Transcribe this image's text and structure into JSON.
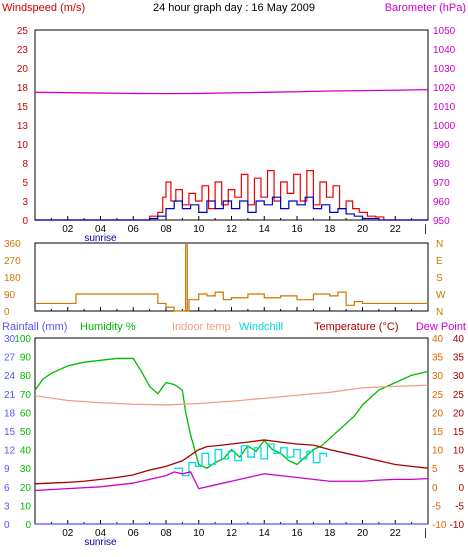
{
  "chart_data": [
    {
      "type": "line",
      "title": "24 hour graph day : 16 May 2009",
      "left_axis_label": "Windspeed (m/s)",
      "right_axis_label": "Barometer (hPa)",
      "left_ylim": [
        0,
        25
      ],
      "left_ticks": [
        "0",
        "3",
        "5",
        "8",
        "10",
        "13",
        "15",
        "18",
        "20",
        "23",
        "25"
      ],
      "right_ylim": [
        950,
        1050
      ],
      "right_ticks": [
        "950",
        "960",
        "970",
        "980",
        "990",
        "1000",
        "1010",
        "1020",
        "1030",
        "1040",
        "1050"
      ],
      "x_ticks": [
        "02",
        "04",
        "06",
        "08",
        "10",
        "12",
        "14",
        "16",
        "18",
        "20",
        "22"
      ],
      "x_annotation": "sunrise",
      "colors": {
        "gust": "#ee0000",
        "wind": "#0000bb",
        "barometer": "#cc00cc",
        "axis_left": "#cc0000",
        "axis_right": "#cc00cc"
      },
      "series": [
        {
          "key": "barometer",
          "axis": "right",
          "x": [
            0,
            2,
            4,
            6,
            8,
            10,
            12,
            14,
            16,
            18,
            20,
            22,
            24
          ],
          "values": [
            1017.2,
            1017.0,
            1016.8,
            1016.6,
            1016.5,
            1016.6,
            1016.9,
            1017.2,
            1017.5,
            1017.9,
            1018.1,
            1018.3,
            1018.6
          ]
        },
        {
          "key": "gust",
          "axis": "left",
          "x": [
            0,
            6.5,
            7,
            7.5,
            7.8,
            8,
            8.3,
            8.6,
            9,
            9.4,
            9.8,
            10.2,
            10.6,
            11,
            11.4,
            11.8,
            12.2,
            12.6,
            13,
            13.4,
            13.8,
            14.2,
            14.6,
            15,
            15.4,
            15.8,
            16.2,
            16.6,
            17,
            17.4,
            17.8,
            18.2,
            18.6,
            19,
            19.4,
            19.8,
            20.3,
            20.8,
            21.3,
            24
          ],
          "values": [
            0,
            0,
            0.5,
            1.0,
            3.0,
            5.0,
            2.5,
            4.0,
            2.0,
            3.5,
            2.5,
            4.5,
            1.5,
            5.0,
            2.0,
            4.0,
            3.0,
            6.0,
            2.0,
            5.5,
            3.0,
            6.5,
            2.5,
            5.0,
            3.5,
            6.0,
            2.5,
            6.5,
            2.0,
            5.0,
            3.0,
            4.5,
            1.5,
            2.5,
            1.5,
            1.0,
            0.5,
            0.4,
            0.0,
            0.0
          ]
        },
        {
          "key": "wind",
          "axis": "left",
          "x": [
            0,
            6.5,
            7,
            7.5,
            8,
            8.5,
            9,
            9.5,
            10,
            10.5,
            11,
            11.5,
            12,
            12.5,
            13,
            13.5,
            14,
            14.5,
            15,
            15.5,
            16,
            16.5,
            17,
            17.5,
            18,
            18.5,
            19,
            19.5,
            20,
            21,
            24
          ],
          "values": [
            0,
            0,
            0.2,
            0.5,
            1.5,
            2.5,
            1.5,
            2.0,
            1.0,
            2.5,
            1.5,
            2.5,
            1.5,
            2.5,
            1.0,
            2.5,
            2.0,
            3.0,
            1.5,
            2.5,
            2.0,
            3.0,
            1.5,
            2.0,
            1.0,
            1.5,
            0.8,
            0.5,
            0.2,
            0.0,
            0.0
          ]
        }
      ]
    },
    {
      "type": "line",
      "axis_label_right": [
        "N",
        "W",
        "S",
        "E",
        "N"
      ],
      "ylim": [
        0,
        360
      ],
      "left_ticks": [
        "0",
        "90",
        "180",
        "270",
        "360"
      ],
      "x_ticks": [
        "02",
        "04",
        "06",
        "08",
        "10",
        "12",
        "14",
        "16",
        "18",
        "20",
        "22"
      ],
      "colors": {
        "direction": "#cc7700",
        "axis": "#cc7700"
      },
      "series": [
        {
          "key": "direction",
          "x": [
            0,
            2,
            2.5,
            4,
            6,
            7,
            7.5,
            8,
            8.5,
            8.8,
            9.2,
            9.3,
            9.4,
            9.5,
            10,
            10.5,
            11,
            11.5,
            12,
            13,
            14,
            15,
            16,
            17,
            18,
            18.5,
            19,
            19.5,
            20,
            22,
            24
          ],
          "values": [
            40,
            40,
            90,
            90,
            90,
            90,
            40,
            20,
            0,
            0,
            350,
            0,
            60,
            60,
            90,
            80,
            100,
            60,
            70,
            90,
            70,
            80,
            60,
            90,
            80,
            100,
            30,
            50,
            40,
            40,
            40
          ]
        }
      ]
    },
    {
      "type": "line",
      "labels": {
        "rainfall": "Rainfall (mm)",
        "humidity": "Humidity %",
        "indoor": "Indoor temp",
        "windchill": "Windchill",
        "temperature": "Temperature (°C)",
        "dewpoint": "Dew Point"
      },
      "x_ticks": [
        "02",
        "04",
        "06",
        "08",
        "10",
        "12",
        "14",
        "16",
        "18",
        "20",
        "22"
      ],
      "x_annotation": "sunrise",
      "rainfall_ticks": [
        "0",
        "3",
        "6",
        "9",
        "12",
        "15",
        "18",
        "21",
        "24",
        "27",
        "30"
      ],
      "humidity_ticks": [
        "0",
        "10",
        "20",
        "30",
        "40",
        "50",
        "60",
        "70",
        "80",
        "90",
        "100"
      ],
      "temp_ticks": [
        "-10",
        "-5",
        "0",
        "5",
        "10",
        "15",
        "20",
        "25",
        "30",
        "35",
        "40"
      ],
      "humidity_ylim": [
        0,
        100
      ],
      "temp_ylim": [
        -10,
        40
      ],
      "colors": {
        "rainfall": "#5555ff",
        "humidity": "#00bb00",
        "indoor": "#f0a080",
        "windchill": "#00dddd",
        "temperature": "#aa0000",
        "dewpoint": "#cc00cc",
        "axis_temp": "#dd6600"
      },
      "series": [
        {
          "key": "humidity",
          "axis": "humidity",
          "x": [
            0,
            0.5,
            1,
            2,
            3,
            4,
            5,
            6,
            6.5,
            7,
            7.5,
            8,
            8.5,
            9,
            9.2,
            9.5,
            10,
            10.5,
            11,
            11.5,
            12,
            12.5,
            13,
            13.5,
            14,
            14.5,
            15,
            15.5,
            16,
            16.5,
            17,
            17.5,
            18,
            18.5,
            19,
            19.5,
            20,
            20.5,
            21,
            22,
            23,
            24
          ],
          "values": [
            72,
            78,
            81,
            85,
            87,
            88,
            89,
            89,
            82,
            74,
            70,
            76,
            75,
            72,
            60,
            48,
            32,
            30,
            33,
            35,
            40,
            36,
            42,
            39,
            45,
            40,
            38,
            34,
            32,
            36,
            40,
            42,
            46,
            50,
            54,
            58,
            64,
            68,
            72,
            76,
            80,
            82
          ]
        },
        {
          "key": "indoor",
          "axis": "temp",
          "x": [
            0,
            2,
            4,
            6,
            8,
            10,
            12,
            14,
            16,
            18,
            20,
            22,
            24
          ],
          "values": [
            24.5,
            23.2,
            22.6,
            22.2,
            22.0,
            22.4,
            23.0,
            23.8,
            24.6,
            25.4,
            26.6,
            27.0,
            27.3
          ]
        },
        {
          "key": "temperature",
          "axis": "temp",
          "x": [
            0,
            1,
            2,
            3,
            4,
            5,
            6,
            7,
            8,
            9,
            9.5,
            10,
            10.5,
            11,
            12,
            13,
            14,
            15,
            16,
            17,
            18,
            19,
            20,
            21,
            22,
            23,
            24
          ],
          "values": [
            0.8,
            1.0,
            1.2,
            1.5,
            2.0,
            2.5,
            3.2,
            4.5,
            5.5,
            7.0,
            8.5,
            10.0,
            10.8,
            11.0,
            11.5,
            12.0,
            12.6,
            12.0,
            11.5,
            11.2,
            10.0,
            9.0,
            8.0,
            7.0,
            6.0,
            5.5,
            5.0
          ]
        },
        {
          "key": "windchill",
          "axis": "temp",
          "x": [
            8.5,
            9,
            9.4,
            9.8,
            10.2,
            10.6,
            11,
            11.4,
            11.8,
            12.2,
            12.6,
            13,
            13.4,
            13.8,
            14.2,
            14.6,
            15,
            15.4,
            15.8,
            16.2,
            16.6,
            17,
            17.4,
            17.8
          ],
          "values": [
            5.0,
            3.0,
            6.5,
            5.5,
            9.0,
            6.0,
            10.0,
            7.5,
            9.5,
            7.0,
            11.0,
            8.0,
            10.5,
            7.5,
            11.5,
            9.0,
            10.5,
            8.0,
            10.0,
            7.5,
            9.5,
            6.5,
            9.0,
            8.0
          ]
        },
        {
          "key": "dewpoint",
          "axis": "temp",
          "x": [
            0,
            2,
            4,
            6,
            7,
            8,
            8.5,
            9,
            9.5,
            10,
            11,
            12,
            13,
            14,
            15,
            16,
            17,
            18,
            19,
            20,
            21,
            22,
            23,
            24
          ],
          "values": [
            -1.0,
            -0.5,
            0.0,
            1.0,
            2.0,
            3.0,
            4.0,
            3.5,
            4.0,
            -0.5,
            0.5,
            1.5,
            2.5,
            3.5,
            3.0,
            2.5,
            2.0,
            1.5,
            1.5,
            1.5,
            1.8,
            2.0,
            2.0,
            2.2
          ]
        },
        {
          "key": "rainfall",
          "axis": "rainfall",
          "x": [
            0,
            24
          ],
          "values": [
            0,
            0
          ]
        }
      ]
    }
  ]
}
